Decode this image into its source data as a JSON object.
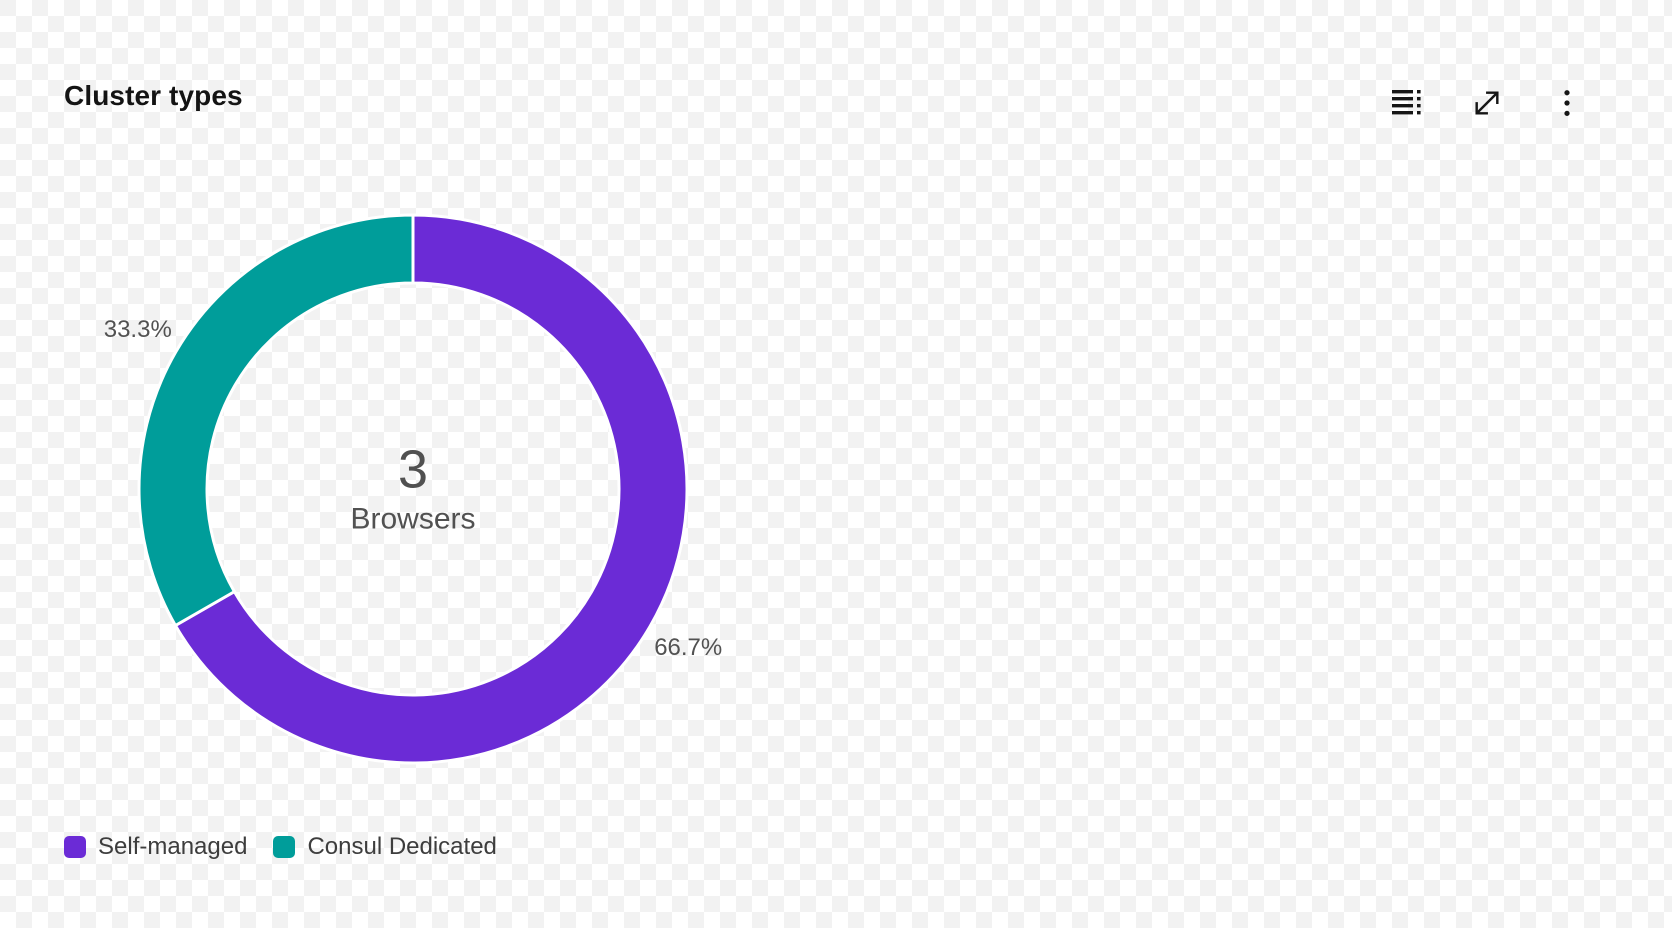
{
  "header": {
    "title": "Cluster types"
  },
  "toolbar": {
    "show_data_table": "show-data-table",
    "maximize": "maximize",
    "overflow_menu": "overflow-menu-vertical"
  },
  "chart_data": {
    "type": "pie",
    "variant": "donut",
    "title": "Cluster types",
    "center": {
      "number": "3",
      "label": "Browsers"
    },
    "categories": [
      "Self-managed",
      "Consul Dedicated"
    ],
    "values": [
      2,
      1
    ],
    "segments": [
      {
        "label": "Self-managed",
        "count": 2,
        "percent": 66.7,
        "percent_label": "66.7%",
        "color": "#6b2bd6"
      },
      {
        "label": "Consul Dedicated",
        "count": 1,
        "percent": 33.3,
        "percent_label": "33.3%",
        "color": "#009d9a"
      }
    ],
    "start_angle_deg": 0,
    "direction": "clockwise",
    "legend_position": "bottom"
  },
  "colors": {
    "purple": "#6b2bd6",
    "teal": "#009d9a",
    "text_primary": "#141414",
    "text_secondary": "#525252",
    "checker_gray": "#f2f2f2"
  }
}
